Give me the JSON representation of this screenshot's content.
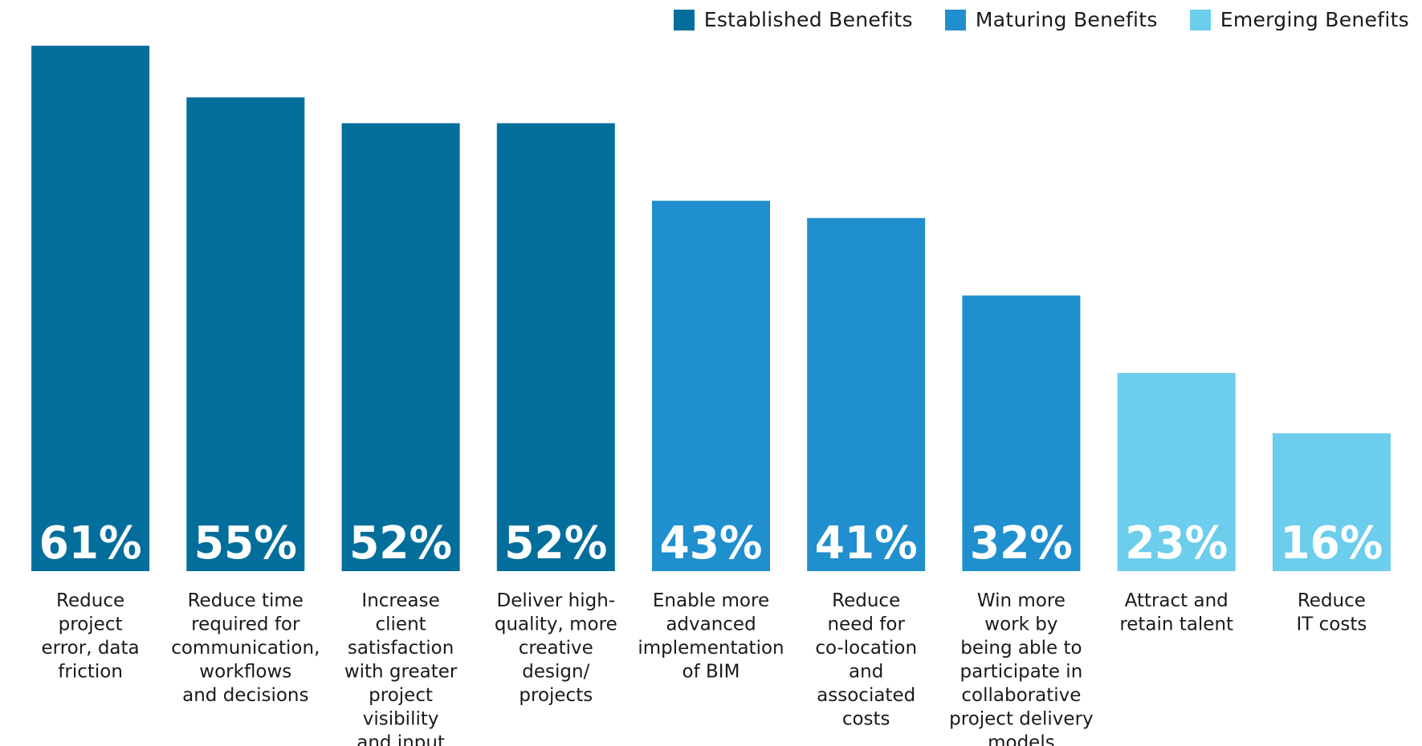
{
  "chart_data": {
    "type": "bar",
    "title": "",
    "xlabel": "",
    "ylabel": "",
    "ylim": [
      0,
      61
    ],
    "unit": "%",
    "categories": [
      [
        "Reduce",
        "project",
        "error, data",
        "friction"
      ],
      [
        "Reduce time",
        "required for",
        "communication,",
        "workflows",
        "and decisions"
      ],
      [
        "Increase",
        "client",
        "satisfaction",
        "with greater",
        "project",
        "visibility",
        "and input"
      ],
      [
        "Deliver high-",
        "quality, more",
        "creative",
        "design/",
        "projects"
      ],
      [
        "Enable more",
        "advanced",
        "implementation",
        "of BIM"
      ],
      [
        "Reduce",
        "need for",
        "co-location",
        "and",
        "associated",
        "costs"
      ],
      [
        "Win more",
        "work by",
        "being able to",
        "participate in",
        "collaborative",
        "project delivery",
        "models"
      ],
      [
        "Attract and",
        "retain talent"
      ],
      [
        "Reduce",
        "IT costs"
      ]
    ],
    "values": [
      61,
      55,
      52,
      52,
      43,
      41,
      32,
      23,
      16
    ],
    "value_labels": [
      "61%",
      "55%",
      "52%",
      "52%",
      "43%",
      "41%",
      "32%",
      "23%",
      "16%"
    ],
    "groups": [
      0,
      0,
      0,
      0,
      1,
      1,
      1,
      2,
      2
    ],
    "legend": {
      "placement": "top-right",
      "entries": [
        {
          "label": "Established Benefits",
          "color": "#036e9c"
        },
        {
          "label": "Maturing Benefits",
          "color": "#1f8fce"
        },
        {
          "label": "Emerging Benefits",
          "color": "#6ccdec"
        }
      ]
    },
    "grid": false
  }
}
